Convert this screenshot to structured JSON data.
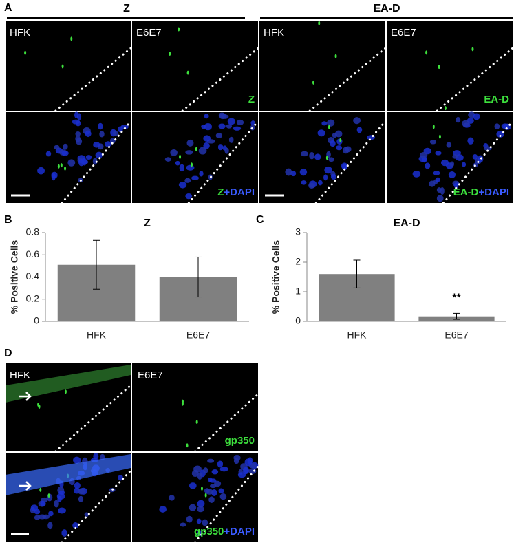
{
  "panel_a": {
    "label": "A",
    "groups": [
      "Z",
      "EA-D"
    ],
    "top_row": [
      "HFK",
      "E6E7",
      "HFK",
      "E6E7"
    ],
    "stain_labels": [
      "Z",
      "EA-D"
    ],
    "dapi_labels": [
      {
        "marker": "Z",
        "counterstain": "+DAPI"
      },
      {
        "marker": "EA-D",
        "counterstain": "+DAPI"
      }
    ]
  },
  "chart_data": [
    {
      "type": "bar",
      "panel_label": "B",
      "title": "Z",
      "y_label": "% Positive Cells",
      "categories": [
        "HFK",
        "E6E7"
      ],
      "values": [
        0.51,
        0.4
      ],
      "errors": [
        0.22,
        0.18
      ],
      "color": "#808080",
      "ylim": [
        0,
        0.8
      ],
      "yticks": [
        0,
        0.2,
        0.4,
        0.6,
        0.8
      ]
    },
    {
      "type": "bar",
      "panel_label": "C",
      "title": "EA-D",
      "y_label": "% Positive Cells",
      "categories": [
        "HFK",
        "E6E7"
      ],
      "values": [
        1.6,
        0.17
      ],
      "errors": [
        0.47,
        0.1
      ],
      "color": "#808080",
      "ylim": [
        0,
        3
      ],
      "yticks": [
        0,
        1,
        2,
        3
      ],
      "annotation": "**"
    }
  ],
  "panel_d": {
    "label": "D",
    "columns": [
      "HFK",
      "E6E7"
    ],
    "stain_label": "gp350",
    "dapi_label": {
      "marker": "gp350",
      "counterstain": "+DAPI"
    }
  }
}
